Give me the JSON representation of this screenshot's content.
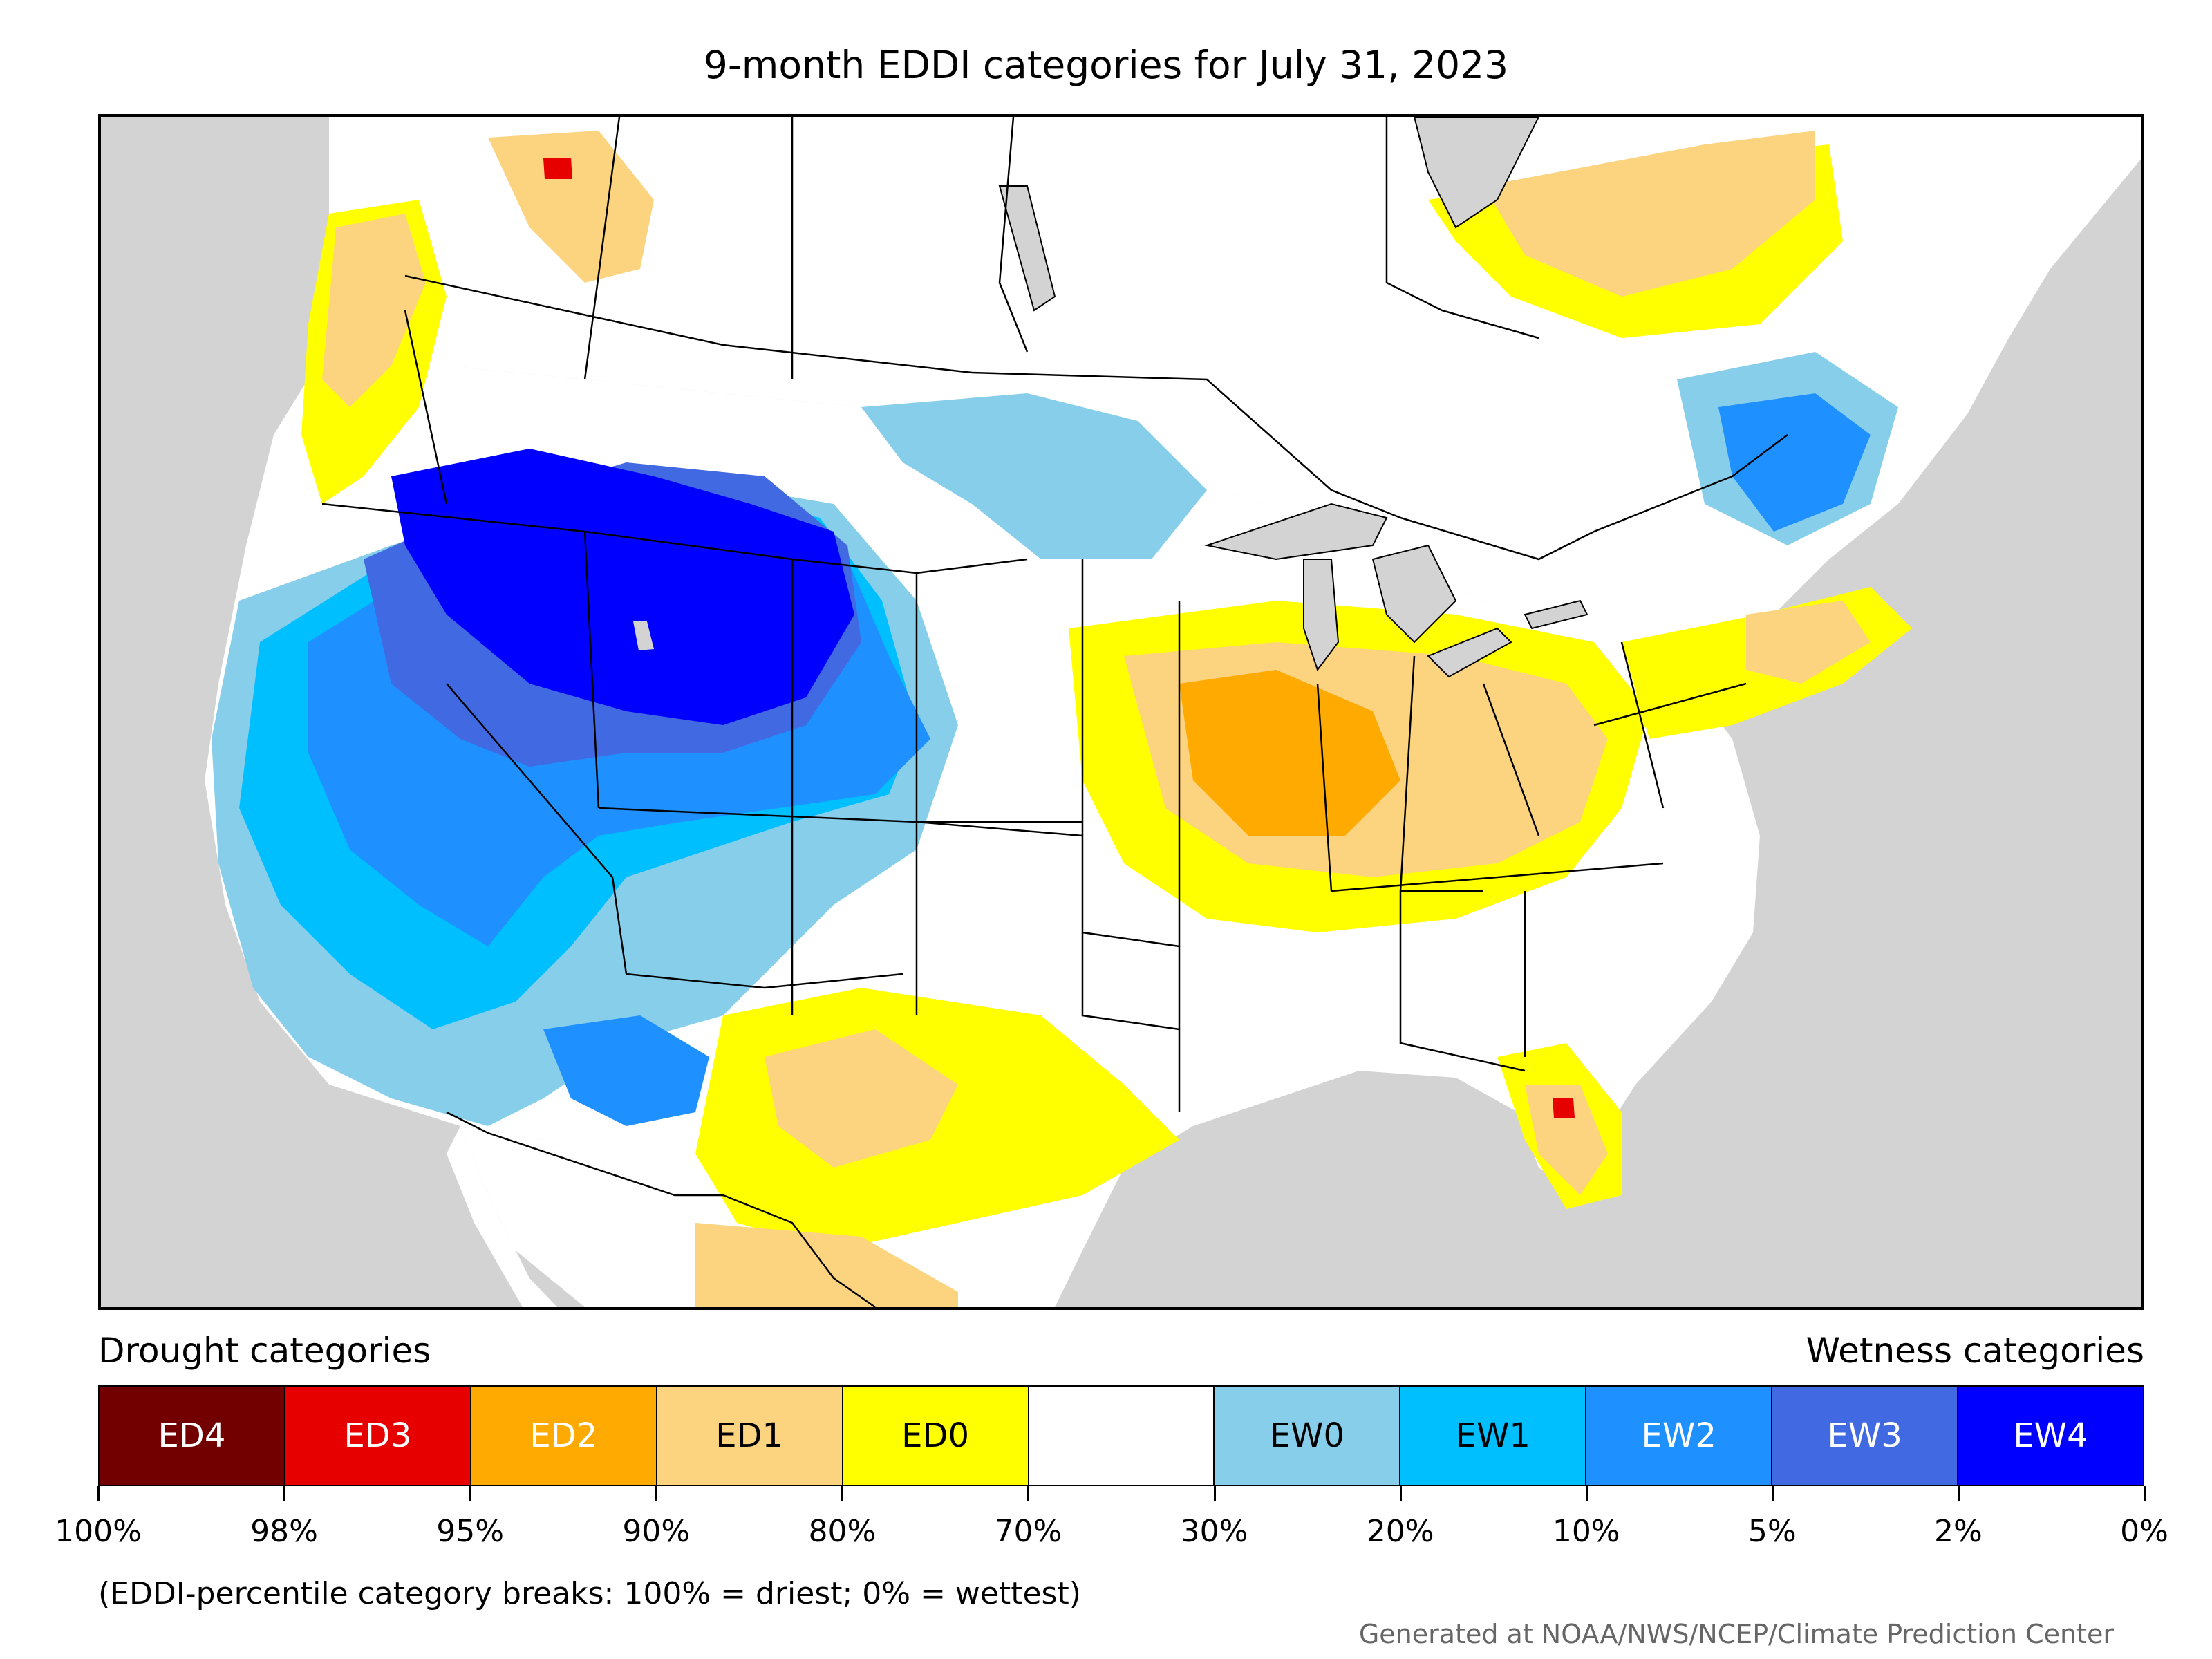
{
  "title": "9-month EDDI categories for July 31, 2023",
  "legend": {
    "drought_label": "Drought categories",
    "wetness_label": "Wetness categories",
    "categories": [
      {
        "label": "ED4",
        "color": "#730000",
        "text_color": "#ffffff"
      },
      {
        "label": "ED3",
        "color": "#e60000",
        "text_color": "#ffffff"
      },
      {
        "label": "ED2",
        "color": "#ffaa00",
        "text_color": "#ffffff"
      },
      {
        "label": "ED1",
        "color": "#fcd37f",
        "text_color": "#000000"
      },
      {
        "label": "ED0",
        "color": "#ffff00",
        "text_color": "#000000"
      },
      {
        "label": "",
        "color": "#ffffff",
        "text_color": "#000000"
      },
      {
        "label": "EW0",
        "color": "#87ceeb",
        "text_color": "#000000"
      },
      {
        "label": "EW1",
        "color": "#00bfff",
        "text_color": "#000000"
      },
      {
        "label": "EW2",
        "color": "#1e90ff",
        "text_color": "#ffffff"
      },
      {
        "label": "EW3",
        "color": "#4169e1",
        "text_color": "#ffffff"
      },
      {
        "label": "EW4",
        "color": "#0000ff",
        "text_color": "#ffffff"
      }
    ],
    "tick_labels": [
      "100%",
      "98%",
      "95%",
      "90%",
      "80%",
      "70%",
      "30%",
      "20%",
      "10%",
      "5%",
      "2%",
      "0%"
    ]
  },
  "note": "(EDDI-percentile category breaks: 100% = driest; 0% = wettest)",
  "credit": "Generated at NOAA/NWS/NCEP/Climate Prediction Center",
  "colors": {
    "ocean": "#d3d3d3",
    "land": "#ffffff",
    "border": "#000000"
  }
}
